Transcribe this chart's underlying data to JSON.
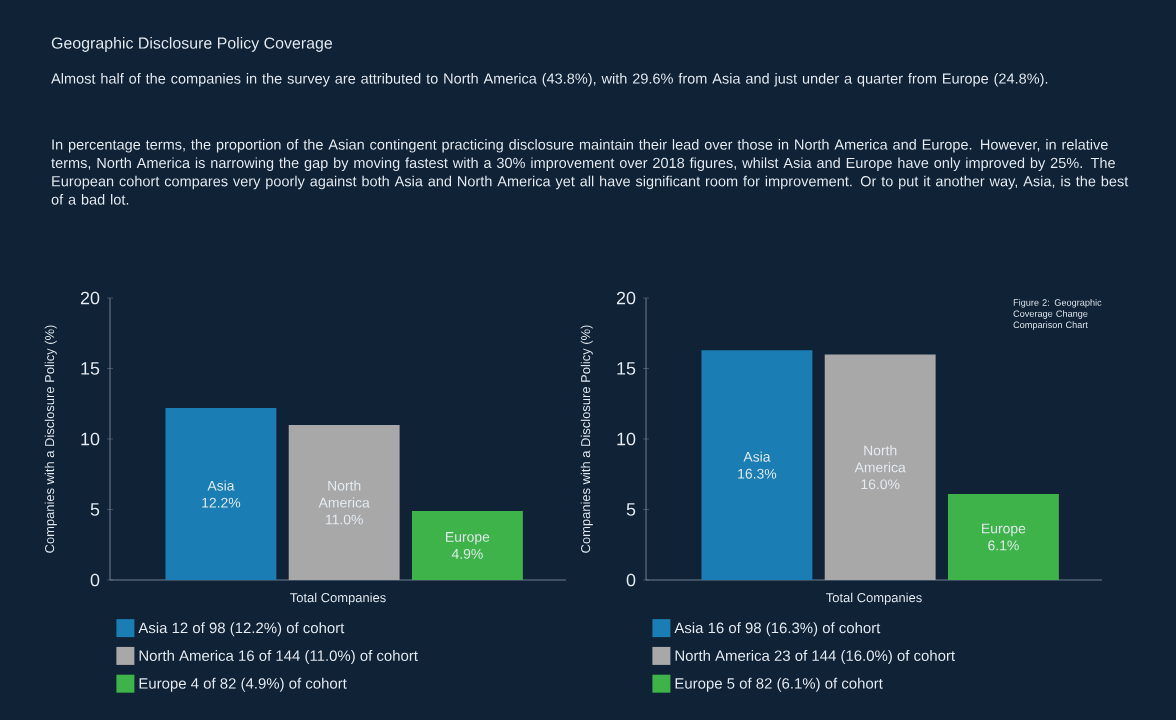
{
  "chart_data": [
    {
      "type": "bar",
      "title": "Geographic Disclosure Policy Coverage",
      "annotations": [
        "Almost half of the companies in the survey are attributed to North America (43.8%), with 29.6% from Asia and just under a quarter from Europe (24.8%).",
        "In percentage terms, the proportion of the Asian contingent practicing disclosure maintain their lead over those in North America and Europe. However, in relative terms, North America is narrowing the gap by moving fastest with a 30% improvement over 2018 figures, whilst Asia and Europe have only improved by 25%. The European cohort compares very poorly against both Asia and North America yet all have significant room for improvement. Or to put it another way, Asia, is the best of a bad lot."
      ],
      "categories": [
        "Asia",
        "North America",
        "Europe"
      ],
      "series": [
        {
          "name": "Asia 12 of 98 (12.2%) of cohort",
          "color": "#1a7db3",
          "values": [
            12.2,
            null,
            null
          ]
        },
        {
          "name": "North America 16 of 144 (11.0%) of cohort",
          "color": "#a8a8a8",
          "values": [
            null,
            11.0,
            null
          ]
        },
        {
          "name": "Europe 4 of 82 (4.9%) of cohort",
          "color": "#3db34a",
          "values": [
            null,
            null,
            4.9
          ]
        }
      ],
      "value_labels": [
        "12.2%",
        "11.0%",
        "4.9%"
      ],
      "xlabel": "Total Companies",
      "ylabel": "Companies with a Disclosure Policy (%)",
      "ylim": [
        0,
        20
      ],
      "yticks": [
        0,
        5,
        10,
        15,
        20
      ],
      "tick_labels": "y",
      "legend": "bottom"
    },
    {
      "type": "bar",
      "annotations": [
        "Figure 2: Geographic Coverage Change Comparison Chart"
      ],
      "categories": [
        "Asia",
        "North America",
        "Europe"
      ],
      "series": [
        {
          "name": "Asia 16 of 98 (16.3%) of cohort",
          "color": "#1a7db3",
          "values": [
            16.3,
            null,
            null
          ]
        },
        {
          "name": "North America 23 of 144 (16.0%) of cohort",
          "color": "#a8a8a8",
          "values": [
            null,
            16.0,
            null
          ]
        },
        {
          "name": "Europe 5 of 82 (6.1%) of cohort",
          "color": "#3db34a",
          "values": [
            null,
            null,
            6.1
          ]
        }
      ],
      "value_labels": [
        "16.3%",
        "16.0%",
        "6.1%"
      ],
      "xlabel": "Total Companies",
      "ylabel": "Companies with a Disclosure Policy (%)",
      "ylim": [
        0,
        20
      ],
      "yticks": [
        0,
        5,
        10,
        15,
        20
      ],
      "tick_labels": "y",
      "legend": "bottom"
    }
  ]
}
